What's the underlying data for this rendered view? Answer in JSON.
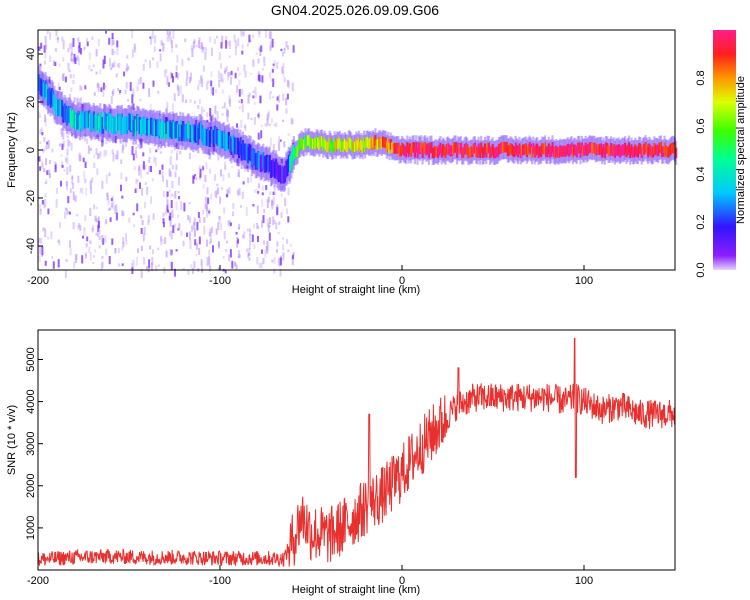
{
  "title": "GN04.2025.026.09.09.G06",
  "chart_data": [
    {
      "type": "heatmap",
      "xlabel": "Height of straight line (km)",
      "ylabel": "Frequency (Hz)",
      "xlim": [
        -200,
        150
      ],
      "ylim": [
        -50,
        50
      ],
      "x_ticks": [
        "-200",
        "-100",
        "0",
        "100"
      ],
      "y_ticks": [
        "40",
        "20",
        "0",
        "-20",
        "-40"
      ],
      "colorbar": {
        "label": "Normalized spectral amplitude",
        "range": [
          0,
          1
        ],
        "ticks": [
          "0.0",
          "0.2",
          "0.4",
          "0.6",
          "0.8"
        ]
      },
      "noise_region_x": [
        -200,
        -60
      ],
      "trace": {
        "x": [
          -200,
          -190,
          -180,
          -160,
          -140,
          -120,
          -100,
          -80,
          -65,
          -60,
          -55,
          -50,
          -40,
          -30,
          -20,
          -15,
          -10,
          -5,
          0,
          20,
          50,
          80,
          100,
          120,
          150
        ],
        "frequency": [
          28,
          18,
          12,
          11,
          10,
          8,
          5,
          -4,
          -10,
          -2,
          3,
          3,
          2,
          2,
          2,
          3,
          2,
          1,
          0,
          0,
          0,
          0,
          0,
          0,
          0
        ],
        "amplitude": [
          0.3,
          0.3,
          0.35,
          0.35,
          0.3,
          0.3,
          0.25,
          0.2,
          0.15,
          0.5,
          0.6,
          0.6,
          0.65,
          0.7,
          0.7,
          0.8,
          0.8,
          0.85,
          0.95,
          0.95,
          0.95,
          0.95,
          0.95,
          0.95,
          0.95
        ]
      },
      "colors": {
        "trace_low": "#5a00ff",
        "trace_high": "#ff1e1e",
        "noise": "#b48cff"
      }
    },
    {
      "type": "line",
      "xlabel": "Height of straight line (km)",
      "ylabel": "SNR (10 * v/v)",
      "xlim": [
        -200,
        150
      ],
      "ylim": [
        0,
        5700
      ],
      "x_ticks": [
        "-200",
        "-100",
        "0",
        "100"
      ],
      "y_ticks": [
        "5000",
        "4000",
        "3000",
        "2000",
        "1000"
      ],
      "series": [
        {
          "color": "#e8302e",
          "x": [
            -200,
            -180,
            -160,
            -140,
            -120,
            -100,
            -80,
            -65,
            -60,
            -55,
            -50,
            -40,
            -30,
            -20,
            -10,
            0,
            10,
            20,
            30,
            40,
            50,
            60,
            70,
            80,
            90,
            95,
            100,
            110,
            120,
            130,
            140,
            150
          ],
          "y": [
            250,
            300,
            320,
            300,
            300,
            280,
            280,
            270,
            700,
            1300,
            900,
            800,
            1100,
            1500,
            1800,
            2300,
            2900,
            3400,
            3900,
            4100,
            4100,
            4100,
            4100,
            4100,
            4000,
            4100,
            4000,
            3800,
            3900,
            3700,
            3700,
            3700
          ]
        }
      ],
      "annotations": [
        {
          "x": 95,
          "y_peak": 5500,
          "y_dip": 2200
        },
        {
          "x": 31,
          "y_peak": 4800
        },
        {
          "x": -18,
          "y_peak": 3700
        }
      ]
    }
  ]
}
